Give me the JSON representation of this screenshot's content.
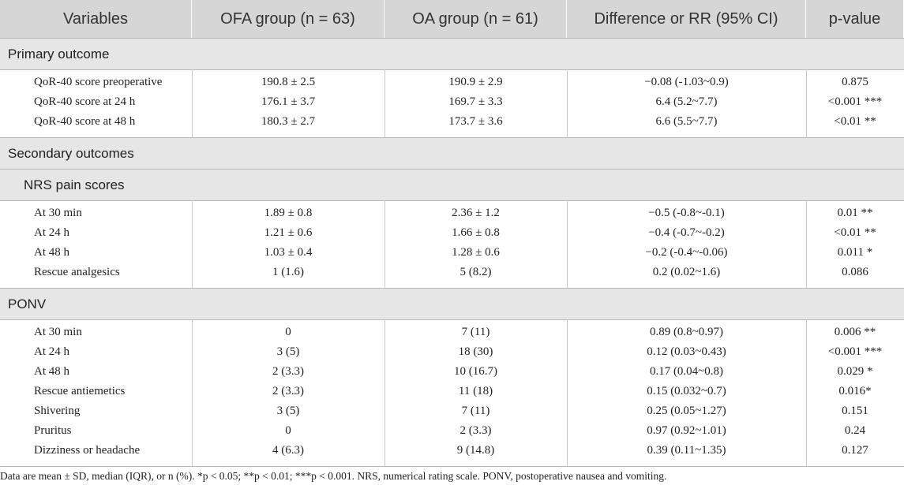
{
  "table": {
    "header": [
      "Variables",
      "OFA group (n = 63)",
      "OA group (n = 61)",
      "Difference or RR (95% CI)",
      "p-value"
    ],
    "blocks": [
      {
        "title": "Primary outcome",
        "rows": [
          [
            "QoR-40 score preoperative",
            "190.8 ± 2.5",
            "190.9 ± 2.9",
            "−0.08 (-1.03~0.9)",
            "0.875"
          ],
          [
            "QoR-40 score at 24 h",
            "176.1 ± 3.7",
            "169.7 ± 3.3",
            "6.4 (5.2~7.7)",
            "<0.001 ***"
          ],
          [
            "QoR-40 score at 48 h",
            "180.3 ± 2.7",
            "173.7 ± 3.6",
            "6.6 (5.5~7.7)",
            "<0.01 **"
          ]
        ]
      },
      {
        "title": "Secondary outcomes"
      },
      {
        "title": "NRS pain scores",
        "rows": [
          [
            "At 30 min",
            "1.89 ± 0.8",
            "2.36 ± 1.2",
            "−0.5 (-0.8~-0.1)",
            "0.01 **"
          ],
          [
            "At 24 h",
            "1.21 ± 0.6",
            "1.66 ± 0.8",
            "−0.4 (-0.7~-0.2)",
            "<0.01 **"
          ],
          [
            "At 48 h",
            "1.03 ± 0.4",
            "1.28 ± 0.6",
            "−0.2 (-0.4~-0.06)",
            "0.011 *"
          ],
          [
            "Rescue analgesics",
            "1 (1.6)",
            "5 (8.2)",
            "0.2 (0.02~1.6)",
            "0.086"
          ]
        ]
      },
      {
        "title": "PONV",
        "rows": [
          [
            "At 30 min",
            "0",
            "7 (11)",
            "0.89 (0.8~0.97)",
            "0.006 **"
          ],
          [
            "At 24 h",
            "3 (5)",
            "18 (30)",
            "0.12 (0.03~0.43)",
            "<0.001 ***"
          ],
          [
            "At 48 h",
            "2 (3.3)",
            "10 (16.7)",
            "0.17 (0.04~0.8)",
            "0.029 *"
          ],
          [
            "Rescue antiemetics",
            "2 (3.3)",
            "11 (18)",
            "0.15 (0.032~0.7)",
            "0.016*"
          ],
          [
            "Shivering",
            "3 (5)",
            "7 (11)",
            "0.25 (0.05~1.27)",
            "0.151"
          ],
          [
            "Pruritus",
            "0",
            "2 (3.3)",
            "0.97 (0.92~1.01)",
            "0.24"
          ],
          [
            "Dizziness or headache",
            "4 (6.3)",
            "9 (14.8)",
            "0.39 (0.11~1.35)",
            "0.127"
          ]
        ]
      }
    ],
    "footnote": "Data are mean ± SD, median (IQR), or n (%). *p < 0.05; **p < 0.01; ***p < 0.001. NRS, numerical rating scale. PONV, postoperative nausea and vomiting."
  }
}
